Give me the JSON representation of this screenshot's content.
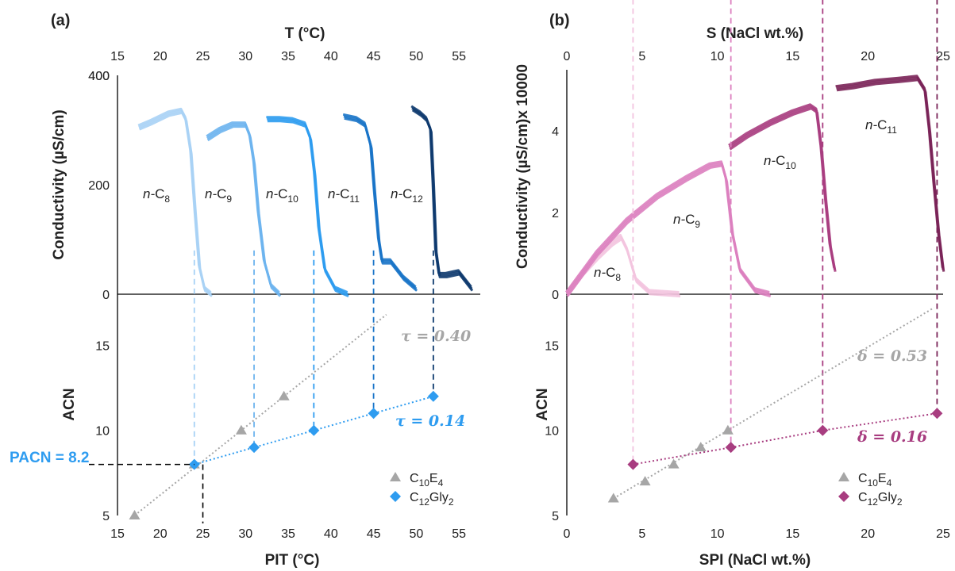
{
  "colors": {
    "axis": "#000000",
    "grey": "#a6a6a6",
    "blue": "#2e9cf0",
    "magenta": "#a83d80",
    "blues": [
      "#a8d2f5",
      "#6db4ee",
      "#2e9cf0",
      "#1a74c8",
      "#0e3a6e"
    ],
    "magentas": [
      "#f3c4df",
      "#dc80bf",
      "#a83d80",
      "#7a2458"
    ]
  },
  "chart_data": [
    {
      "panel": "(a)",
      "type": "line",
      "xlabel_top": "T (°C)",
      "xlim_top": [
        15,
        57.5
      ],
      "xticks_top": [
        15,
        20,
        25,
        30,
        35,
        40,
        45,
        50,
        55
      ],
      "ylabel": "Conductivity  (µS/cm)",
      "ylim": [
        0,
        400
      ],
      "yticks": [
        0,
        200,
        400
      ],
      "series": [
        {
          "name": "n-C8",
          "label": [
            "n-",
            "C",
            "8"
          ],
          "color_index": 0,
          "x": [
            17.5,
            19,
            21,
            22.5,
            23.0,
            23.6,
            24.1,
            24.6,
            25.2,
            26
          ],
          "y": [
            305,
            315,
            330,
            335,
            320,
            260,
            150,
            50,
            10,
            0
          ]
        },
        {
          "name": "n-C9",
          "label": [
            "n-",
            "C",
            "9"
          ],
          "color_index": 1,
          "x": [
            25.5,
            27,
            28.5,
            30,
            30.5,
            31,
            31.5,
            32.2,
            33,
            34
          ],
          "y": [
            285,
            300,
            310,
            310,
            290,
            240,
            150,
            60,
            15,
            0
          ]
        },
        {
          "name": "n-C10",
          "label": [
            "n-",
            "C",
            "10"
          ],
          "color_index": 2,
          "x": [
            32.5,
            34,
            35.5,
            37,
            37.6,
            38.1,
            38.6,
            39.3,
            40.5,
            42
          ],
          "y": [
            320,
            320,
            318,
            310,
            285,
            220,
            120,
            45,
            10,
            0
          ]
        },
        {
          "name": "n-C11",
          "label": [
            "n-",
            "C",
            "11"
          ],
          "color_index": 3,
          "x": [
            41.5,
            43,
            44,
            44.7,
            45.1,
            45.6,
            46,
            47,
            48.5,
            50
          ],
          "y": [
            325,
            320,
            310,
            270,
            190,
            100,
            60,
            60,
            30,
            10
          ]
        },
        {
          "name": "n-C12",
          "label": [
            "n-",
            "C",
            "12"
          ],
          "color_index": 4,
          "x": [
            49.5,
            50.5,
            51.2,
            51.7,
            52.0,
            52.3,
            52.7,
            53.5,
            55,
            56.5
          ],
          "y": [
            340,
            330,
            320,
            300,
            200,
            80,
            35,
            35,
            40,
            10
          ]
        }
      ],
      "PIT": [
        24,
        31,
        38,
        45,
        52
      ],
      "bottom": {
        "xlabel": "PIT (°C)",
        "xlim": [
          15,
          57.5
        ],
        "xticks": [
          15,
          20,
          25,
          30,
          35,
          40,
          45,
          50,
          55
        ],
        "ylabel": "ACN",
        "ylim": [
          5,
          18
        ],
        "yticks": [
          5,
          10,
          15
        ],
        "series": [
          {
            "name": "C10E4",
            "legend": [
              "C",
              "10",
              "E",
              "4"
            ],
            "marker": "triangle",
            "color": "grey",
            "x": [
              17,
              24,
              29.5,
              34.5
            ],
            "y": [
              5,
              8,
              10,
              12
            ]
          },
          {
            "name": "C12Gly2",
            "legend": [
              "C",
              "12",
              "Gly",
              "2"
            ],
            "marker": "diamond",
            "color": "blue",
            "x": [
              24,
              31,
              38,
              45,
              52
            ],
            "y": [
              8,
              9,
              10,
              11,
              12
            ]
          }
        ],
        "annotations": {
          "coef_grey": "τ = 0.40",
          "coef_color": "τ = 0.14",
          "pacn": "PACN = 8.2"
        }
      }
    },
    {
      "panel": "(b)",
      "type": "line",
      "xlabel_top": "S (NaCl wt.%)",
      "xlim_top": [
        0,
        25
      ],
      "xticks_top": [
        0,
        5,
        10,
        15,
        20,
        25
      ],
      "ylabel": "Conductivity  (µS/cm)x 10000",
      "ylim": [
        0,
        5.5
      ],
      "yticks": [
        0,
        2,
        4
      ],
      "series": [
        {
          "name": "n-C8",
          "label": [
            "n-",
            "C",
            "8"
          ],
          "color_index": 0,
          "x": [
            0,
            1,
            2,
            3,
            3.6,
            4.0,
            4.6,
            5.5,
            7.5
          ],
          "y": [
            0,
            0.5,
            0.9,
            1.25,
            1.4,
            1.1,
            0.35,
            0.05,
            0
          ]
        },
        {
          "name": "n-C9",
          "label": [
            "n-",
            "C",
            "9"
          ],
          "color_index": 1,
          "x": [
            0,
            2,
            4,
            6,
            8,
            9.5,
            10.3,
            10.6,
            11,
            11.5,
            12.5,
            13.5
          ],
          "y": [
            0,
            1.0,
            1.8,
            2.4,
            2.85,
            3.15,
            3.2,
            2.8,
            1.5,
            0.6,
            0.1,
            0
          ]
        },
        {
          "name": "n-C10",
          "label": [
            "n-",
            "C",
            "10"
          ],
          "color_index": 2,
          "x": [
            10.8,
            12,
            13.5,
            15,
            16.2,
            16.6,
            16.9,
            17.2,
            17.5,
            17.8
          ],
          "y": [
            3.6,
            3.9,
            4.2,
            4.45,
            4.6,
            4.5,
            3.6,
            2.3,
            1.2,
            0.6
          ]
        },
        {
          "name": "n-C11",
          "label": [
            "n-",
            "C",
            "11"
          ],
          "color_index": 3,
          "x": [
            17.9,
            19,
            20.5,
            22,
            23.3,
            23.8,
            24.1,
            24.4,
            24.7,
            25
          ],
          "y": [
            5.05,
            5.1,
            5.2,
            5.25,
            5.3,
            5.0,
            4.0,
            2.7,
            1.5,
            0.6
          ]
        }
      ],
      "SPI": [
        4.4,
        10.9,
        17,
        24.6
      ],
      "bottom": {
        "xlabel": "SPI (NaCl wt.%)",
        "xlim": [
          0,
          25
        ],
        "xticks": [
          0,
          5,
          10,
          15,
          20,
          25
        ],
        "ylabel": "ACN",
        "ylim": [
          5,
          18
        ],
        "yticks": [
          5,
          10,
          15
        ],
        "series": [
          {
            "name": "C10E4",
            "legend": [
              "C",
              "10",
              "E",
              "4"
            ],
            "marker": "triangle",
            "color": "grey",
            "x": [
              3.1,
              5.2,
              7.1,
              8.9,
              10.7
            ],
            "y": [
              6,
              7,
              8,
              9,
              10
            ]
          },
          {
            "name": "C12Gly2",
            "legend": [
              "C",
              "12",
              "Gly",
              "2"
            ],
            "marker": "diamond",
            "color": "magenta",
            "x": [
              4.4,
              10.9,
              17,
              24.6
            ],
            "y": [
              8,
              9,
              10,
              11
            ]
          }
        ],
        "annotations": {
          "coef_grey": "δ = 0.53",
          "coef_color": "δ = 0.16"
        }
      }
    }
  ]
}
